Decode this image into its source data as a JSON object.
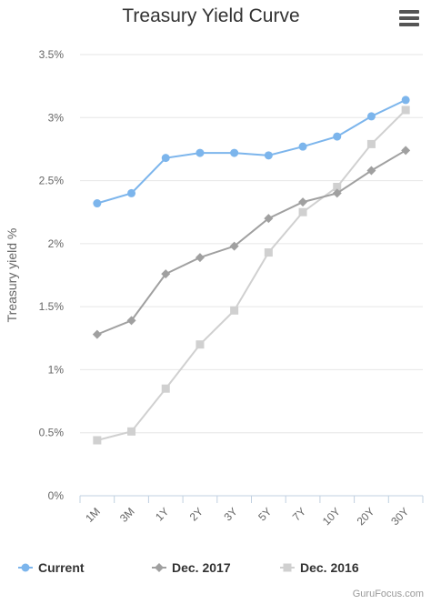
{
  "chart_data": {
    "type": "line",
    "title": "Treasury Yield Curve",
    "xlabel": "",
    "ylabel": "Treasury yield %",
    "categories": [
      "1M",
      "3M",
      "1Y",
      "2Y",
      "3Y",
      "5Y",
      "7Y",
      "10Y",
      "20Y",
      "30Y"
    ],
    "ylim": [
      0,
      3.5
    ],
    "yticks": [
      "0%",
      "0.5%",
      "1%",
      "1.5%",
      "2%",
      "2.5%",
      "3%",
      "3.5%"
    ],
    "grid": true,
    "legend": "bottom",
    "series": [
      {
        "name": "Current",
        "color": "#7cb5ec",
        "marker": "circle",
        "values": [
          2.32,
          2.4,
          2.68,
          2.72,
          2.72,
          2.7,
          2.77,
          2.85,
          3.01,
          3.14
        ]
      },
      {
        "name": "Dec. 2017",
        "color": "#a0a0a0",
        "marker": "diamond",
        "values": [
          1.28,
          1.39,
          1.76,
          1.89,
          1.98,
          2.2,
          2.33,
          2.4,
          2.58,
          2.74
        ]
      },
      {
        "name": "Dec. 2016",
        "color": "#d0d0d0",
        "marker": "square",
        "values": [
          0.44,
          0.51,
          0.85,
          1.2,
          1.47,
          1.93,
          2.25,
          2.45,
          2.79,
          3.06
        ]
      }
    ]
  },
  "credit": "GuruFocus.com",
  "menu_icon": "hamburger-menu-icon"
}
